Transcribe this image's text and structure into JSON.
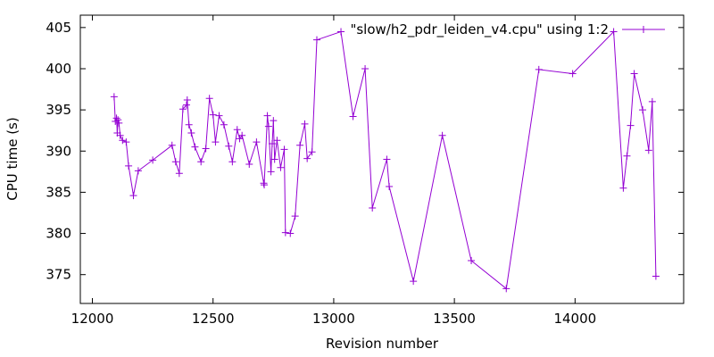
{
  "chart_data": {
    "type": "line",
    "title": "",
    "xlabel": "Revision number",
    "ylabel": "CPU time (s)",
    "xlim": [
      11950,
      14450
    ],
    "ylim": [
      371.5,
      406.5
    ],
    "x_ticks": [
      12000,
      12500,
      13000,
      13500,
      14000
    ],
    "x_tick_labels": [
      "12000",
      "12500",
      "13000",
      "13500",
      "14000"
    ],
    "y_ticks": [
      375,
      380,
      385,
      390,
      395,
      400,
      405
    ],
    "y_tick_labels": [
      "375",
      "380",
      "385",
      "390",
      "395",
      "400",
      "405"
    ],
    "grid": false,
    "legend_position": "top-right",
    "series": [
      {
        "name": "\"slow/h2_pdr_leiden_v4.cpu\" using 1:2",
        "color": "#9400d3",
        "marker": "plus",
        "points": [
          [
            12090,
            396.6
          ],
          [
            12095,
            393.6
          ],
          [
            12100,
            394.0
          ],
          [
            12103,
            392.2
          ],
          [
            12106,
            393.8
          ],
          [
            12110,
            393.4
          ],
          [
            12115,
            391.9
          ],
          [
            12125,
            391.3
          ],
          [
            12140,
            391.1
          ],
          [
            12150,
            388.2
          ],
          [
            12170,
            384.6
          ],
          [
            12190,
            387.6
          ],
          [
            12250,
            388.9
          ],
          [
            12330,
            390.7
          ],
          [
            12345,
            388.7
          ],
          [
            12360,
            387.3
          ],
          [
            12375,
            395.1
          ],
          [
            12390,
            395.6
          ],
          [
            12393,
            396.2
          ],
          [
            12400,
            393.2
          ],
          [
            12410,
            392.2
          ],
          [
            12425,
            390.5
          ],
          [
            12450,
            388.7
          ],
          [
            12470,
            390.3
          ],
          [
            12485,
            396.4
          ],
          [
            12500,
            394.4
          ],
          [
            12510,
            391.1
          ],
          [
            12525,
            394.3
          ],
          [
            12545,
            393.2
          ],
          [
            12565,
            390.6
          ],
          [
            12580,
            388.7
          ],
          [
            12600,
            392.6
          ],
          [
            12610,
            391.5
          ],
          [
            12620,
            391.9
          ],
          [
            12650,
            388.4
          ],
          [
            12680,
            391.1
          ],
          [
            12710,
            386.1
          ],
          [
            12712,
            385.9
          ],
          [
            12725,
            394.3
          ],
          [
            12730,
            393.0
          ],
          [
            12740,
            387.5
          ],
          [
            12745,
            390.9
          ],
          [
            12750,
            393.7
          ],
          [
            12755,
            389.0
          ],
          [
            12765,
            391.3
          ],
          [
            12780,
            388.0
          ],
          [
            12795,
            390.2
          ],
          [
            12800,
            380.1
          ],
          [
            12820,
            380.0
          ],
          [
            12840,
            382.1
          ],
          [
            12860,
            390.7
          ],
          [
            12880,
            393.3
          ],
          [
            12890,
            389.1
          ],
          [
            12910,
            389.9
          ],
          [
            12930,
            403.5
          ],
          [
            13030,
            404.5
          ],
          [
            13080,
            394.2
          ],
          [
            13130,
            400.0
          ],
          [
            13160,
            383.1
          ],
          [
            13220,
            389.0
          ],
          [
            13230,
            385.7
          ],
          [
            13330,
            374.2
          ],
          [
            13450,
            391.9
          ],
          [
            13570,
            376.7
          ],
          [
            13715,
            373.3
          ],
          [
            13850,
            399.9
          ],
          [
            13990,
            399.4
          ],
          [
            14160,
            404.5
          ],
          [
            14200,
            385.5
          ],
          [
            14215,
            389.4
          ],
          [
            14230,
            393.1
          ],
          [
            14245,
            399.4
          ],
          [
            14280,
            395.0
          ],
          [
            14305,
            390.1
          ],
          [
            14320,
            396.0
          ],
          [
            14335,
            374.8
          ]
        ]
      }
    ]
  }
}
